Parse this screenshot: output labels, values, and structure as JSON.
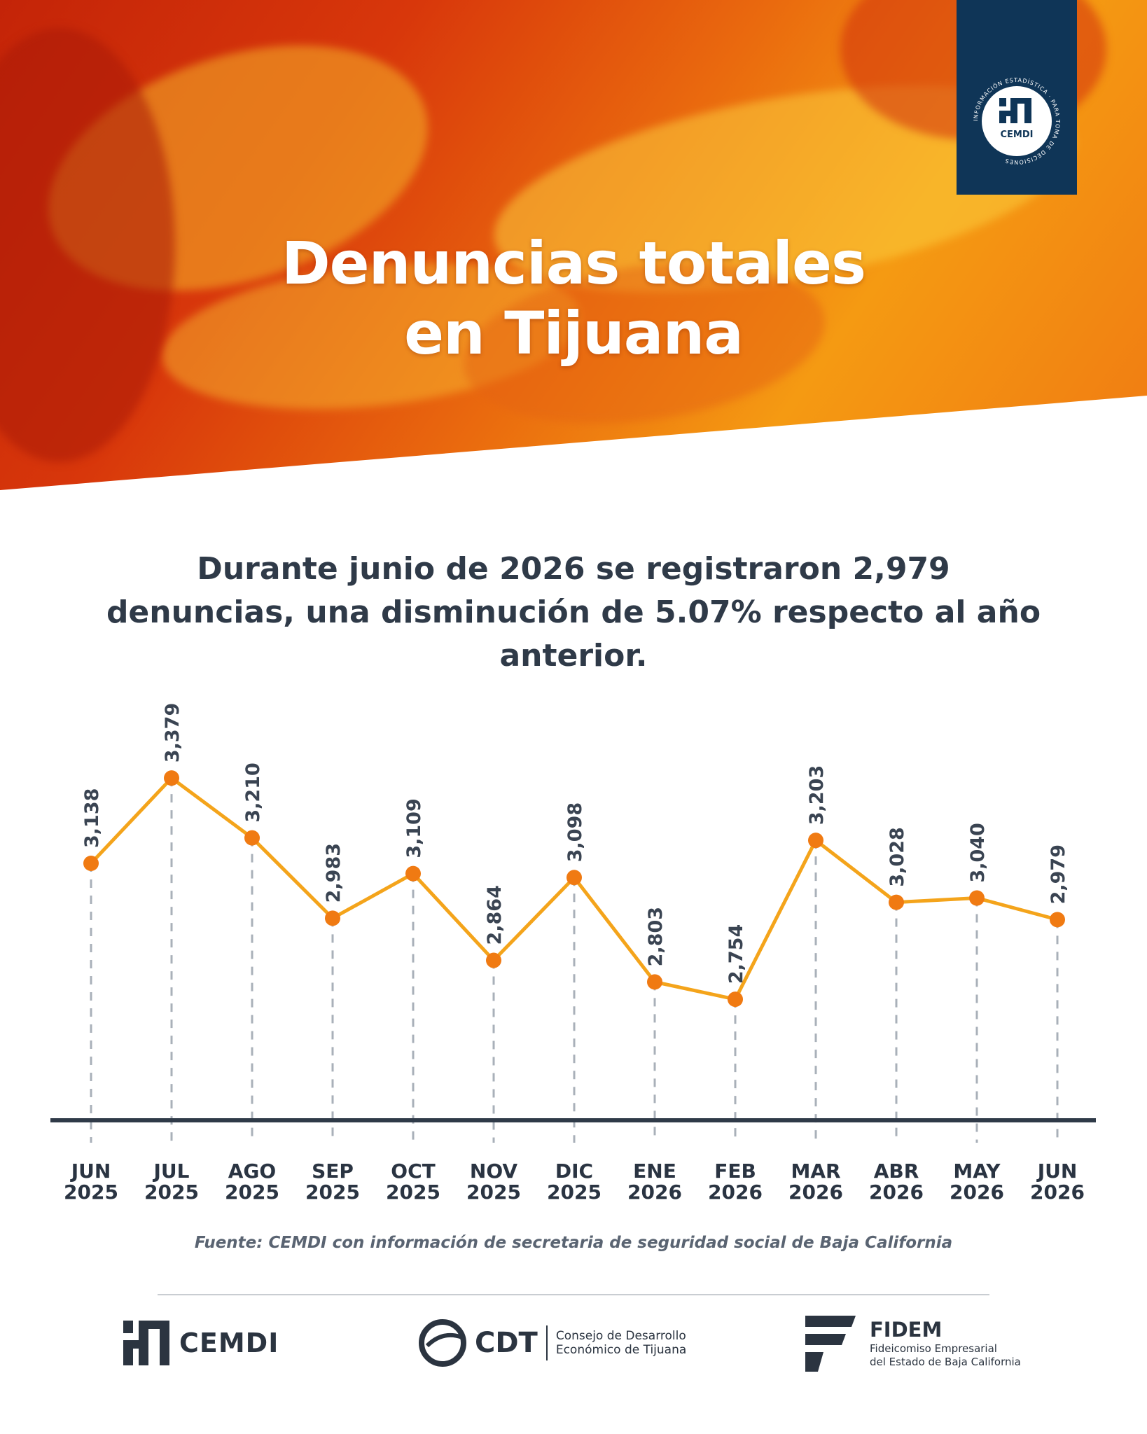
{
  "header": {
    "title_line1": "Denuncias totales",
    "title_line2": "en Tijuana",
    "badge": {
      "logo_text": "CEMDI",
      "ring_text": "INFORMACIÓN ESTADÍSTICA · PARA TOMA DE DECISIONES"
    }
  },
  "summary": "Durante junio de 2026 se registraron 2,979 denuncias, una disminución de 5.07% respecto al año anterior.",
  "chart_data": {
    "type": "line",
    "title": "",
    "xlabel": "",
    "ylabel": "",
    "categories": [
      {
        "month": "JUN",
        "year": "2025"
      },
      {
        "month": "JUL",
        "year": "2025"
      },
      {
        "month": "AGO",
        "year": "2025"
      },
      {
        "month": "SEP",
        "year": "2025"
      },
      {
        "month": "OCT",
        "year": "2025"
      },
      {
        "month": "NOV",
        "year": "2025"
      },
      {
        "month": "DIC",
        "year": "2025"
      },
      {
        "month": "ENE",
        "year": "2026"
      },
      {
        "month": "FEB",
        "year": "2026"
      },
      {
        "month": "MAR",
        "year": "2026"
      },
      {
        "month": "ABR",
        "year": "2026"
      },
      {
        "month": "MAY",
        "year": "2026"
      },
      {
        "month": "JUN",
        "year": "2026"
      }
    ],
    "values": [
      3138,
      3379,
      3210,
      2983,
      3109,
      2864,
      3098,
      2803,
      2754,
      3203,
      3028,
      3040,
      2979
    ],
    "value_labels": [
      "3,138",
      "3,379",
      "3,210",
      "2,983",
      "3,109",
      "2,864",
      "3,098",
      "2,803",
      "2,754",
      "3,203",
      "3,028",
      "3,040",
      "2,979"
    ],
    "ylim": [
      2600,
      3500
    ],
    "grid": false,
    "colors": {
      "line": "#f4a41b",
      "point": "#f07a12",
      "guide": "#a9b0b9",
      "baseline": "#2f3a48"
    }
  },
  "source": "Fuente: CEMDI con información de secretaria de seguridad social de Baja California",
  "footer": {
    "cemdi": {
      "name": "CEMDI"
    },
    "cdt": {
      "name": "CDT",
      "desc_line1": "Consejo de Desarrollo",
      "desc_line2": "Económico de Tijuana"
    },
    "fidem": {
      "name": "FIDEM",
      "desc_line1": "Fideicomiso Empresarial",
      "desc_line2": "del Estado de Baja California"
    }
  }
}
